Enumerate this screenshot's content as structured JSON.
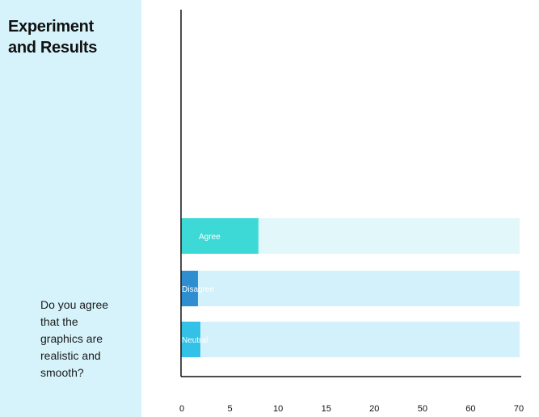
{
  "sidebar": {
    "title_lines": [
      "Experiment",
      "and Results"
    ],
    "question_lines": [
      "Do you agree",
      "that the",
      "graphics are",
      "realistic and",
      "smooth?"
    ]
  },
  "chart_data": {
    "type": "bar",
    "orientation": "horizontal",
    "categories": [
      "Agree",
      "Disagree",
      "Neutral"
    ],
    "values": [
      16,
      3.5,
      4
    ],
    "max_values": [
      70,
      70,
      70
    ],
    "bar_colors": [
      "#3dd9d6",
      "#2f8ed0",
      "#33c1e8"
    ],
    "track_colors": [
      "#e2f7f9",
      "#d3f1fa",
      "#d3f1fa"
    ],
    "xticks": [
      0,
      5,
      10,
      15,
      20,
      50,
      60,
      70
    ],
    "xlim": [
      0,
      70
    ],
    "title": "",
    "xlabel": "",
    "ylabel": "",
    "grid": false,
    "legend": "none"
  }
}
